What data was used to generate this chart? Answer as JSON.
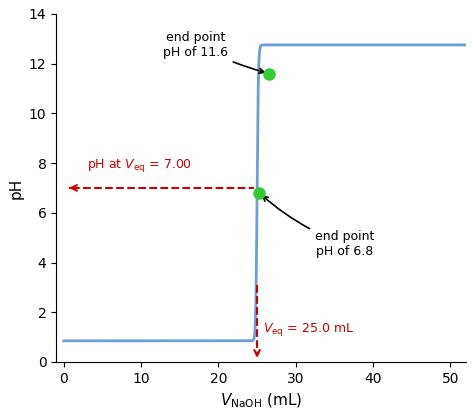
{
  "ylabel": "pH",
  "xlim": [
    -1,
    52
  ],
  "ylim": [
    0,
    14
  ],
  "xticks": [
    0,
    10,
    20,
    30,
    40,
    50
  ],
  "yticks": [
    0,
    2,
    4,
    6,
    8,
    10,
    12,
    14
  ],
  "curve_color": "#6a9fd8",
  "curve_lw": 2.0,
  "eq_x": 25.0,
  "eq_ph": 6.8,
  "point1_x": 26.5,
  "point1_y": 11.6,
  "point2_x": 25.3,
  "point2_y": 6.8,
  "point_color": "#33cc33",
  "point_size": 8,
  "dashed_color": "#cc0000",
  "background_color": "#ffffff",
  "steepness": 12.0,
  "ph_min": 0.85,
  "ph_max": 12.75,
  "mid_x": 25.0,
  "annotation_fontsize": 9,
  "axis_fontsize": 11,
  "tick_fontsize": 10
}
